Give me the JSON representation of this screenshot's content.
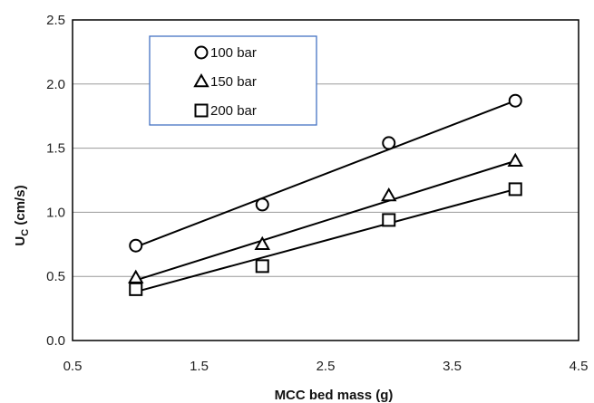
{
  "chart_data": {
    "type": "scatter",
    "xlabel": "MCC bed mass (g)",
    "ylabel_main": "U",
    "ylabel_sub": "C",
    "ylabel_unit": " (cm/s)",
    "xlim": [
      0.5,
      4.5
    ],
    "ylim": [
      0.0,
      2.5
    ],
    "xticks": [
      "0.5",
      "1.5",
      "2.5",
      "3.5",
      "4.5"
    ],
    "yticks": [
      "0.0",
      "0.5",
      "1.0",
      "1.5",
      "2.0",
      "2.5"
    ],
    "grid": "horizontal",
    "legend_position": "top-left",
    "series": [
      {
        "name": "100 bar",
        "marker": "circle",
        "x": [
          1,
          2,
          3,
          4
        ],
        "y": [
          0.74,
          1.06,
          1.54,
          1.87
        ],
        "trend": [
          [
            1,
            0.73
          ],
          [
            4,
            1.87
          ]
        ]
      },
      {
        "name": "150 bar",
        "marker": "triangle",
        "x": [
          1,
          2,
          3,
          4
        ],
        "y": [
          0.49,
          0.75,
          1.13,
          1.4
        ],
        "trend": [
          [
            1,
            0.47
          ],
          [
            4,
            1.4
          ]
        ]
      },
      {
        "name": "200 bar",
        "marker": "square",
        "x": [
          1,
          2,
          3,
          4
        ],
        "y": [
          0.4,
          0.58,
          0.94,
          1.18
        ],
        "trend": [
          [
            1,
            0.38
          ],
          [
            4,
            1.18
          ]
        ]
      }
    ]
  }
}
